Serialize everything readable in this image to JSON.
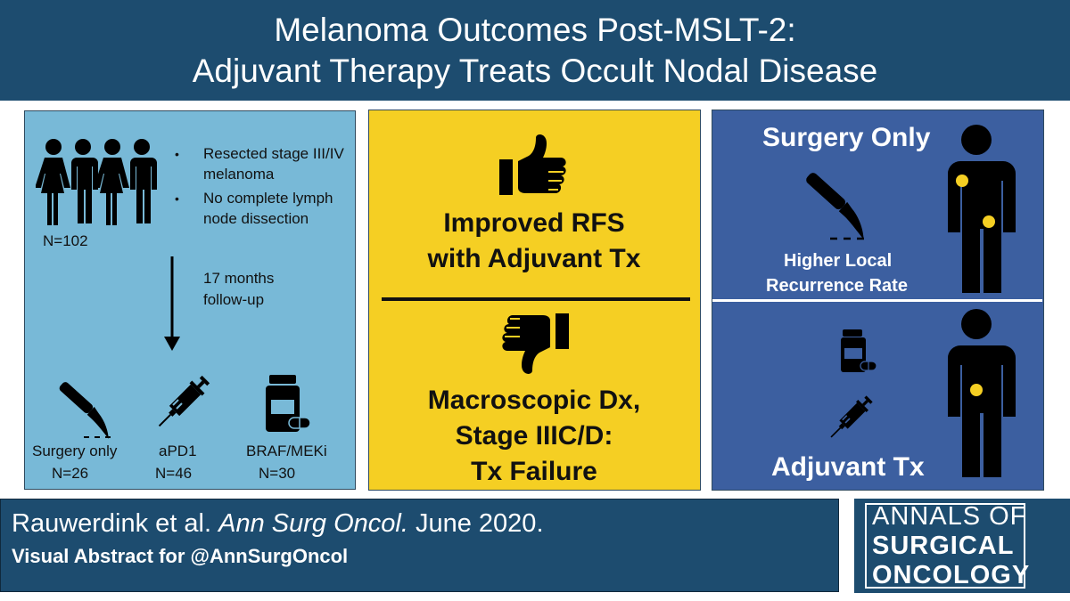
{
  "title": {
    "line1": "Melanoma Outcomes Post-MSLT-2:",
    "line2": "Adjuvant Therapy Treats Occult Nodal Disease"
  },
  "left_panel": {
    "bullets": [
      "Resected stage III/IV melanoma",
      "No complete lymph node dissection"
    ],
    "n_total": "N=102",
    "followup_line1": "17 months",
    "followup_line2": "follow-up",
    "groups": [
      {
        "label": "Surgery only",
        "n": "N=26",
        "icon": "scalpel-icon"
      },
      {
        "label": "aPD1",
        "n": "N=46",
        "icon": "syringe-icon"
      },
      {
        "label": "BRAF/MEKi",
        "n": "N=30",
        "icon": "pill-bottle-icon"
      }
    ]
  },
  "middle_panel": {
    "positive_line1": "Improved RFS",
    "positive_line2": "with Adjuvant Tx",
    "negative_line1": "Macroscopic Dx,",
    "negative_line2": "Stage IIIC/D:",
    "negative_line3": "Tx Failure",
    "icons": [
      "thumbs-up-icon",
      "thumbs-down-icon"
    ]
  },
  "right_panel": {
    "top_heading": "Surgery Only",
    "top_caption_line1": "Higher Local",
    "top_caption_line2": "Recurrence Rate",
    "bottom_heading": "Adjuvant Tx"
  },
  "citation": {
    "authors": "Rauwerdink et al.",
    "journal": "Ann Surg Oncol.",
    "date": "June 2020.",
    "subtitle": "Visual Abstract for @AnnSurgOncol"
  },
  "logo": {
    "line1": "ANNALS OF",
    "line2": "SURGICAL",
    "line3": "ONCOLOGY"
  },
  "colors": {
    "title_bg": "#1d4c6f",
    "left_panel": "#78b9d7",
    "middle_panel": "#f5cf23",
    "right_panel": "#3c5fa0",
    "tumor_dot": "#f5cf23"
  }
}
